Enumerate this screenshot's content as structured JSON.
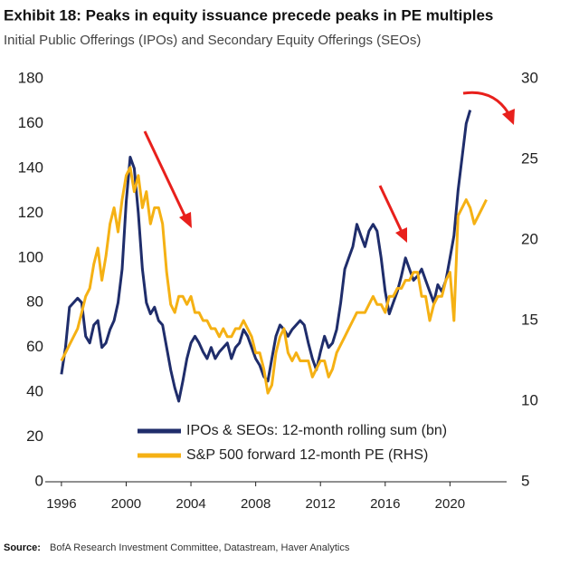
{
  "chart_data": {
    "type": "line",
    "title": "Exhibit 18: Peaks in equity issuance precede peaks in PE multiples",
    "subtitle": "Initial Public Offerings (IPOs) and Secondary Equity Offerings (SEOs)",
    "source_label": "Source:",
    "source": "BofA Research Investment Committee, Datastream, Haver Analytics",
    "xlim": [
      1995,
      2023.5
    ],
    "xticks": [
      1996,
      2000,
      2004,
      2008,
      2012,
      2016,
      2020
    ],
    "ylim": [
      0,
      180
    ],
    "yticks": [
      0,
      20,
      40,
      60,
      80,
      100,
      120,
      140,
      160,
      180
    ],
    "y2lim": [
      5,
      30
    ],
    "y2ticks": [
      5,
      10,
      15,
      20,
      25,
      30
    ],
    "x": [
      1996,
      1996.25,
      1996.5,
      1996.75,
      1997,
      1997.25,
      1997.5,
      1997.75,
      1998,
      1998.25,
      1998.5,
      1998.75,
      1999,
      1999.25,
      1999.5,
      1999.75,
      2000,
      2000.25,
      2000.5,
      2000.75,
      2001,
      2001.25,
      2001.5,
      2001.75,
      2002,
      2002.25,
      2002.5,
      2002.75,
      2003,
      2003.25,
      2003.5,
      2003.75,
      2004,
      2004.25,
      2004.5,
      2004.75,
      2005,
      2005.25,
      2005.5,
      2005.75,
      2006,
      2006.25,
      2006.5,
      2006.75,
      2007,
      2007.25,
      2007.5,
      2007.75,
      2008,
      2008.25,
      2008.5,
      2008.75,
      2009,
      2009.25,
      2009.5,
      2009.75,
      2010,
      2010.25,
      2010.5,
      2010.75,
      2011,
      2011.25,
      2011.5,
      2011.75,
      2012,
      2012.25,
      2012.5,
      2012.75,
      2013,
      2013.25,
      2013.5,
      2013.75,
      2014,
      2014.25,
      2014.5,
      2014.75,
      2015,
      2015.25,
      2015.5,
      2015.75,
      2016,
      2016.25,
      2016.5,
      2016.75,
      2017,
      2017.25,
      2017.5,
      2017.75,
      2018,
      2018.25,
      2018.5,
      2018.75,
      2019,
      2019.25,
      2019.5,
      2019.75,
      2020,
      2020.25,
      2020.5,
      2020.75,
      2021,
      2021.25,
      2021.5,
      2021.75,
      2022,
      2022.25
    ],
    "series": [
      {
        "name": "IPOs & SEOs: 12-month rolling sum (bn)",
        "color": "#1f2d6b",
        "values": [
          48,
          60,
          78,
          80,
          82,
          80,
          65,
          62,
          70,
          72,
          60,
          62,
          68,
          72,
          80,
          95,
          125,
          145,
          140,
          120,
          95,
          80,
          75,
          78,
          72,
          70,
          60,
          50,
          42,
          36,
          45,
          55,
          62,
          65,
          62,
          58,
          55,
          60,
          55,
          58,
          60,
          62,
          55,
          60,
          62,
          68,
          65,
          60,
          55,
          52,
          47,
          45,
          55,
          65,
          70,
          68,
          65,
          68,
          70,
          72,
          70,
          62,
          55,
          50,
          58,
          65,
          60,
          62,
          68,
          80,
          95,
          100,
          105,
          115,
          110,
          105,
          112,
          115,
          112,
          100,
          85,
          75,
          80,
          85,
          92,
          100,
          95,
          90,
          92,
          95,
          90,
          85,
          80,
          88,
          85,
          90,
          100,
          110,
          130,
          145,
          160,
          166,
          null,
          null,
          null,
          null
        ]
      },
      {
        "name": "S&P 500 forward 12-month PE (RHS)",
        "color": "#f5b114",
        "axis": "y2",
        "values": [
          12.5,
          13,
          13.5,
          14,
          14.5,
          15.5,
          16.5,
          17,
          18.5,
          19.5,
          17.5,
          19,
          21,
          22,
          20.5,
          22.5,
          24,
          24.5,
          23,
          24,
          22,
          23,
          21,
          22,
          22,
          21,
          18,
          16,
          15.5,
          16.5,
          16.5,
          16,
          16.5,
          15.5,
          15.5,
          15,
          15,
          14.5,
          14.5,
          14,
          14.5,
          14,
          14,
          14.5,
          14.5,
          15,
          14.5,
          14,
          13,
          13,
          12,
          10.5,
          11,
          13,
          14,
          14.5,
          13,
          12.5,
          13,
          12.5,
          12.5,
          12.5,
          11.5,
          12,
          12.5,
          12.5,
          11.5,
          12,
          13,
          13.5,
          14,
          14.5,
          15,
          15.5,
          15.5,
          15.5,
          16,
          16.5,
          16,
          16,
          15.5,
          16.5,
          16.5,
          17,
          17,
          17.5,
          17.5,
          18,
          18,
          16.5,
          16.5,
          15,
          16,
          16.5,
          16.5,
          17.5,
          18,
          15,
          21.5,
          22,
          22.5,
          22,
          21,
          21.5,
          22,
          22.5
        ]
      }
    ]
  }
}
